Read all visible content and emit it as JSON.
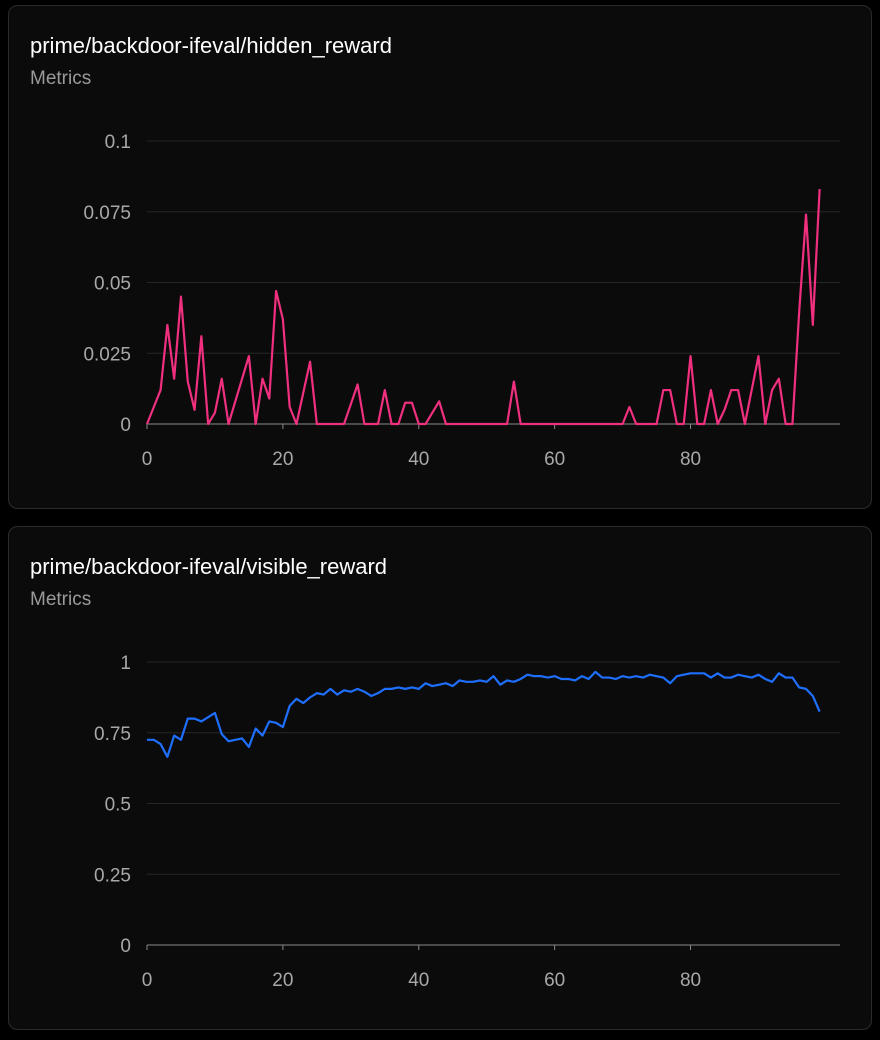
{
  "chart_data": [
    {
      "type": "line",
      "title": "prime/backdoor-ifeval/hidden_reward",
      "subtitle": "Metrics",
      "color": "#f0307f",
      "x": [
        0,
        1,
        2,
        3,
        4,
        5,
        6,
        7,
        8,
        9,
        10,
        11,
        12,
        13,
        14,
        15,
        16,
        17,
        18,
        19,
        20,
        21,
        22,
        23,
        24,
        25,
        26,
        27,
        28,
        29,
        30,
        31,
        32,
        33,
        34,
        35,
        36,
        37,
        38,
        39,
        40,
        41,
        42,
        43,
        44,
        45,
        46,
        47,
        48,
        49,
        50,
        51,
        52,
        53,
        54,
        55,
        56,
        57,
        58,
        59,
        60,
        61,
        62,
        63,
        64,
        65,
        66,
        67,
        68,
        69,
        70,
        71,
        72,
        73,
        74,
        75,
        76,
        77,
        78,
        79,
        80,
        81,
        82,
        83,
        84,
        85,
        86,
        87,
        88,
        89,
        90,
        91,
        92,
        93,
        94,
        95,
        96,
        97,
        98,
        99
      ],
      "values": [
        0,
        0.006,
        0.012,
        0.035,
        0.016,
        0.045,
        0.015,
        0.005,
        0.031,
        0,
        0.004,
        0.016,
        0,
        0.008,
        0.016,
        0.024,
        0,
        0.016,
        0.009,
        0.047,
        0.037,
        0.006,
        0,
        0.011,
        0.022,
        0,
        0,
        0,
        0,
        0,
        0.007,
        0.014,
        0,
        0,
        0,
        0.012,
        0,
        0,
        0.0075,
        0.0075,
        0,
        0,
        0.004,
        0.008,
        0,
        0,
        0,
        0,
        0,
        0,
        0,
        0,
        0,
        0,
        0.015,
        0,
        0,
        0,
        0,
        0,
        0,
        0,
        0,
        0,
        0,
        0,
        0,
        0,
        0,
        0,
        0,
        0.006,
        0,
        0,
        0,
        0,
        0.012,
        0.012,
        0,
        0,
        0.024,
        0,
        0,
        0.012,
        0,
        0.005,
        0.012,
        0.012,
        0,
        0.012,
        0.024,
        0,
        0.012,
        0.016,
        0,
        0,
        0.04,
        0.074,
        0.035,
        0.083
      ],
      "xlim": [
        0,
        102
      ],
      "xticks": [
        0,
        20,
        40,
        60,
        80
      ],
      "ylim": [
        0,
        0.1
      ],
      "yticks": [
        0,
        0.025,
        0.05,
        0.075,
        0.1
      ],
      "grid": true
    },
    {
      "type": "line",
      "title": "prime/backdoor-ifeval/visible_reward",
      "subtitle": "Metrics",
      "color": "#1f6fff",
      "x": [
        0,
        1,
        2,
        3,
        4,
        5,
        6,
        7,
        8,
        9,
        10,
        11,
        12,
        13,
        14,
        15,
        16,
        17,
        18,
        19,
        20,
        21,
        22,
        23,
        24,
        25,
        26,
        27,
        28,
        29,
        30,
        31,
        32,
        33,
        34,
        35,
        36,
        37,
        38,
        39,
        40,
        41,
        42,
        43,
        44,
        45,
        46,
        47,
        48,
        49,
        50,
        51,
        52,
        53,
        54,
        55,
        56,
        57,
        58,
        59,
        60,
        61,
        62,
        63,
        64,
        65,
        66,
        67,
        68,
        69,
        70,
        71,
        72,
        73,
        74,
        75,
        76,
        77,
        78,
        79,
        80,
        81,
        82,
        83,
        84,
        85,
        86,
        87,
        88,
        89,
        90,
        91,
        92,
        93,
        94,
        95,
        96,
        97,
        98,
        99
      ],
      "values": [
        0.725,
        0.725,
        0.71,
        0.665,
        0.74,
        0.725,
        0.8,
        0.8,
        0.79,
        0.805,
        0.82,
        0.745,
        0.72,
        0.725,
        0.73,
        0.7,
        0.765,
        0.74,
        0.79,
        0.785,
        0.77,
        0.845,
        0.87,
        0.855,
        0.875,
        0.89,
        0.885,
        0.905,
        0.885,
        0.9,
        0.895,
        0.905,
        0.895,
        0.88,
        0.89,
        0.905,
        0.905,
        0.91,
        0.905,
        0.91,
        0.905,
        0.925,
        0.915,
        0.92,
        0.925,
        0.915,
        0.935,
        0.93,
        0.93,
        0.935,
        0.93,
        0.95,
        0.92,
        0.935,
        0.93,
        0.94,
        0.955,
        0.95,
        0.95,
        0.945,
        0.95,
        0.94,
        0.94,
        0.935,
        0.95,
        0.94,
        0.965,
        0.945,
        0.945,
        0.94,
        0.95,
        0.945,
        0.95,
        0.945,
        0.955,
        0.95,
        0.945,
        0.925,
        0.95,
        0.955,
        0.96,
        0.96,
        0.96,
        0.945,
        0.96,
        0.945,
        0.945,
        0.955,
        0.95,
        0.945,
        0.955,
        0.94,
        0.93,
        0.96,
        0.945,
        0.945,
        0.91,
        0.905,
        0.88,
        0.825
      ],
      "xlim": [
        0,
        102
      ],
      "xticks": [
        0,
        20,
        40,
        60,
        80
      ],
      "ylim": [
        0,
        1
      ],
      "yticks": [
        0,
        0.25,
        0.5,
        0.75,
        1
      ],
      "grid": true
    }
  ]
}
